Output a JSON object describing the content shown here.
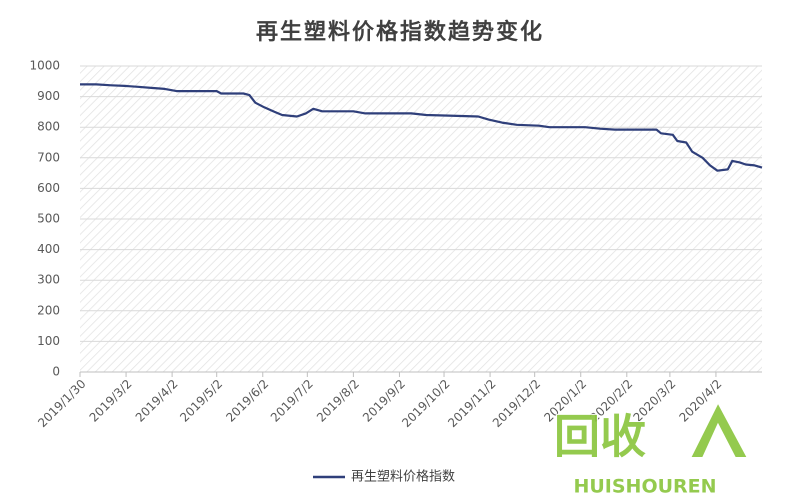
{
  "chart_data": {
    "type": "line",
    "title": "再生塑料价格指数趋势变化",
    "x": [
      "2019/1/30",
      "2019/2/10",
      "2019/2/20",
      "2019/3/1",
      "2019/3/10",
      "2019/3/20",
      "2019/3/28",
      "2019/4/5",
      "2019/4/20",
      "2019/5/2",
      "2019/5/5",
      "2019/5/20",
      "2019/5/24",
      "2019/5/28",
      "2019/6/3",
      "2019/6/10",
      "2019/6/15",
      "2019/6/25",
      "2019/7/1",
      "2019/7/6",
      "2019/7/12",
      "2019/8/2",
      "2019/8/10",
      "2019/9/10",
      "2019/9/20",
      "2019/10/5",
      "2019/10/25",
      "2019/11/1",
      "2019/11/10",
      "2019/11/20",
      "2019/12/5",
      "2019/12/12",
      "2020/1/5",
      "2020/1/15",
      "2020/1/25",
      "2020/2/22",
      "2020/2/25",
      "2020/3/4",
      "2020/3/7",
      "2020/3/13",
      "2020/3/17",
      "2020/3/24",
      "2020/3/29",
      "2020/4/3",
      "2020/4/10",
      "2020/4/13",
      "2020/4/18",
      "2020/4/22",
      "2020/4/28",
      "2020/5/3"
    ],
    "series": [
      {
        "name": "再生塑料价格指数",
        "color": "#2f3f7a",
        "values": [
          940,
          940,
          937,
          935,
          932,
          928,
          925,
          918,
          918,
          918,
          910,
          910,
          905,
          880,
          865,
          850,
          840,
          835,
          845,
          860,
          852,
          852,
          845,
          845,
          840,
          838,
          835,
          825,
          815,
          808,
          805,
          800,
          800,
          795,
          792,
          792,
          780,
          775,
          755,
          750,
          720,
          700,
          675,
          658,
          662,
          690,
          685,
          678,
          675,
          668
        ]
      }
    ],
    "xlim": [
      "2019/1/30",
      "2020/5/3"
    ],
    "xticks": [
      "2019/1/30",
      "2019/3/2",
      "2019/4/2",
      "2019/5/2",
      "2019/6/2",
      "2019/7/2",
      "2019/8/2",
      "2019/9/2",
      "2019/10/2",
      "2019/11/2",
      "2019/12/2",
      "2020/1/2",
      "2020/2/2",
      "2020/3/2",
      "2020/4/2"
    ],
    "ylim": [
      0,
      1000
    ],
    "yticks": [
      0,
      100,
      200,
      300,
      400,
      500,
      600,
      700,
      800,
      900,
      1000
    ],
    "grid": true,
    "legend": "bottom"
  },
  "watermark": {
    "mark": "回收",
    "brand": "HUISHOUREN"
  }
}
